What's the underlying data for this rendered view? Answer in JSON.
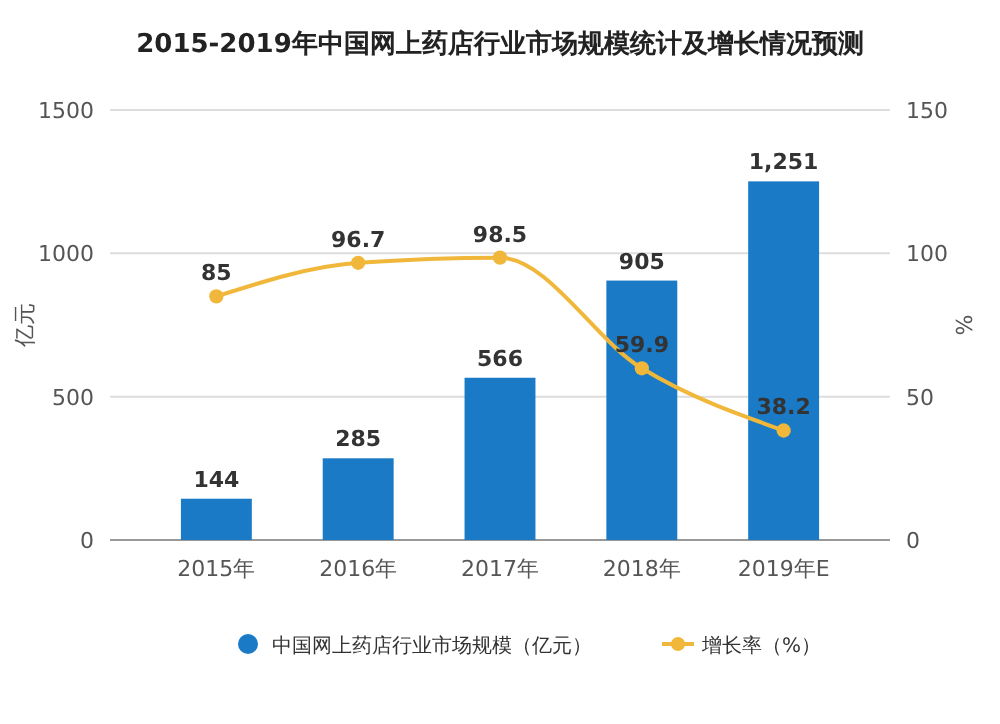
{
  "chart_data": {
    "type": "bar",
    "title": "2015-2019年中国网上药店行业市场规模统计及增长情况预测",
    "categories": [
      "2015年",
      "2016年",
      "2017年",
      "2018年",
      "2019年E"
    ],
    "series": [
      {
        "name": "中国网上药店行业市场规模（亿元）",
        "color": "#1a7ac6",
        "values": [
          144,
          285,
          566,
          905,
          1251
        ],
        "value_labels": [
          "144",
          "285",
          "566",
          "905",
          "1,251"
        ]
      },
      {
        "name": "增长率（%）",
        "type": "line",
        "axis": "y2",
        "color": "#f0b73a",
        "values": [
          85,
          96.7,
          98.5,
          59.9,
          38.2
        ],
        "value_labels": [
          "85",
          "96.7",
          "98.5",
          "59.9",
          "38.2"
        ]
      }
    ],
    "ylabel": "亿元",
    "y2label": "%",
    "ylim": [
      0,
      1500
    ],
    "yticks": [
      0,
      500,
      1000,
      1500
    ],
    "y2lim": [
      0,
      150
    ],
    "y2ticks": [
      0,
      50,
      100,
      150
    ],
    "grid": "y",
    "legend": "bottom",
    "marker": "circle"
  }
}
